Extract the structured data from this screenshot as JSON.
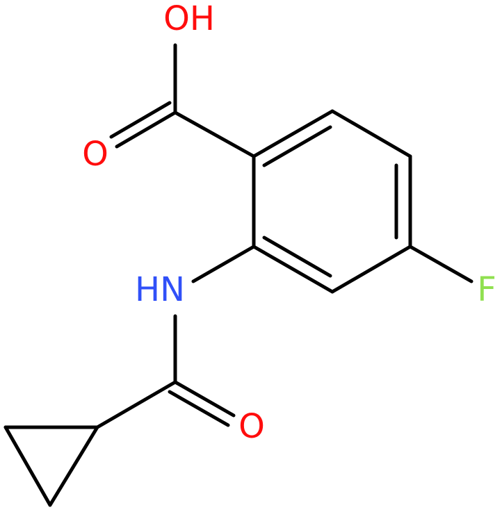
{
  "atoms": [
    {
      "label": "OH"
    },
    {
      "label": "O"
    },
    {
      "label": "HN"
    },
    {
      "label": "F"
    },
    {
      "label": "O"
    }
  ]
}
